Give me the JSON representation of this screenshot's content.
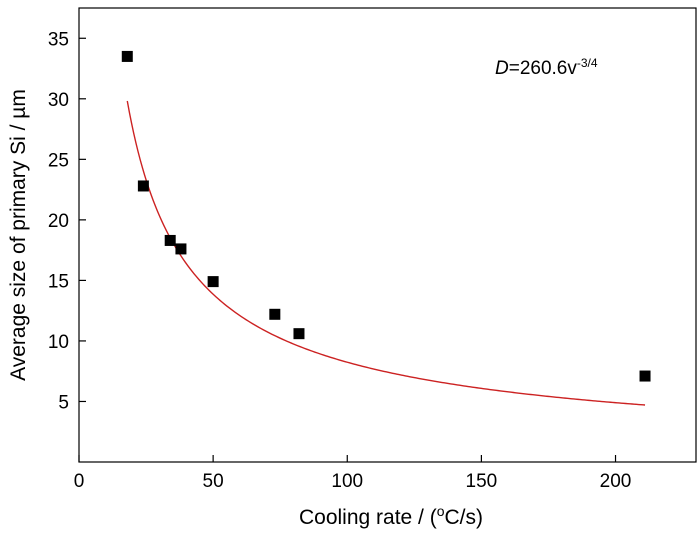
{
  "chart_data": {
    "type": "scatter",
    "xlabel": {
      "prefix": "Cooling rate / (",
      "sup": "o",
      "suffix": "C/s)"
    },
    "ylabel": "Average size of primary Si / µm",
    "xlim": [
      0,
      230
    ],
    "ylim": [
      0,
      37.5
    ],
    "xticks": [
      0,
      50,
      100,
      150,
      200
    ],
    "yticks": [
      5,
      10,
      15,
      20,
      25,
      30,
      35
    ],
    "grid": false,
    "annotation": {
      "var": "D",
      "eq": "=260.6v",
      "exp": "-3/4"
    },
    "series": [
      {
        "kind": "points",
        "marker": "square",
        "color": "#000000",
        "x": [
          18,
          24,
          34,
          38,
          50,
          73,
          82,
          211
        ],
        "y": [
          33.5,
          22.8,
          18.3,
          17.6,
          14.9,
          12.2,
          10.6,
          7.1
        ]
      },
      {
        "kind": "fit",
        "color": "#cc2222",
        "coefficient": 260.6,
        "exponent": -0.75,
        "x_range": [
          18,
          211
        ]
      }
    ]
  }
}
